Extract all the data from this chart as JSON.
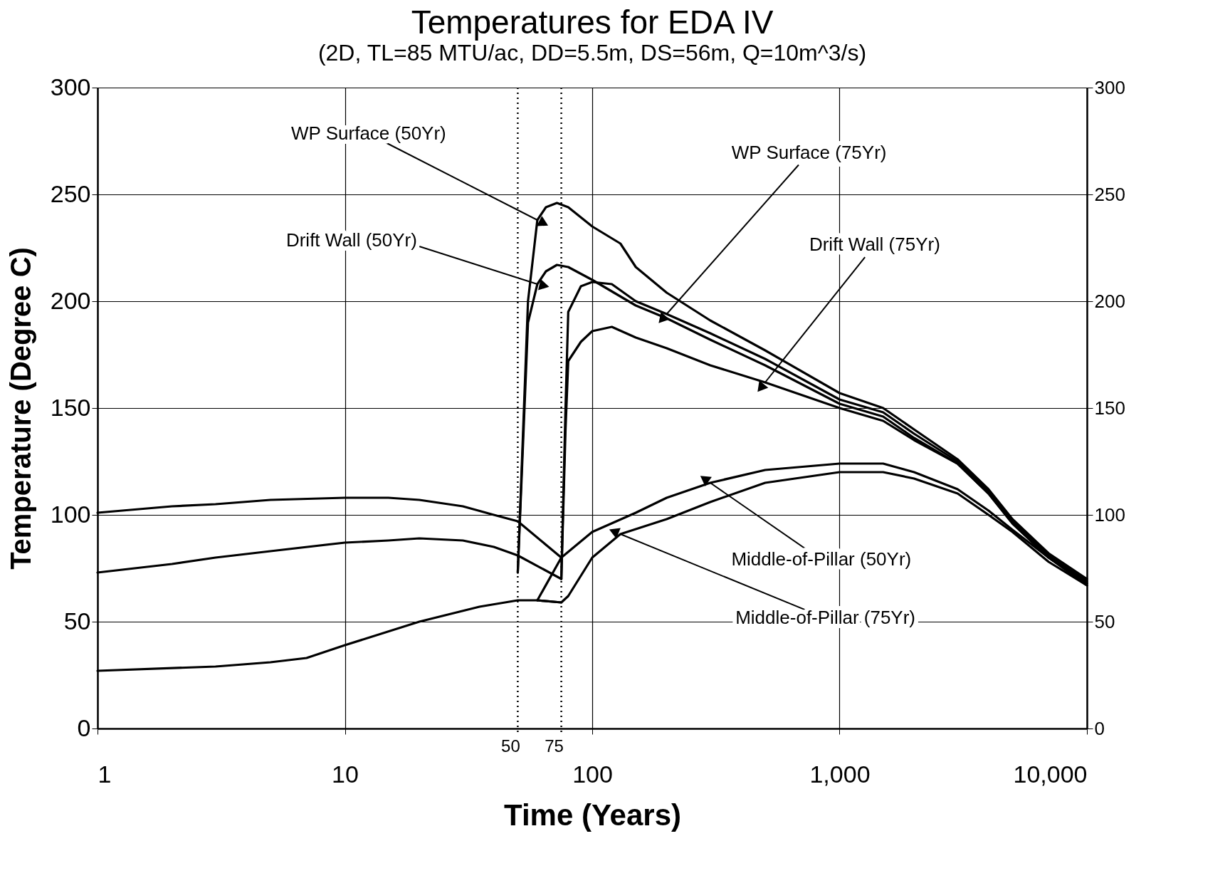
{
  "chart_data": {
    "type": "line",
    "title": "Temperatures for EDA IV",
    "subtitle": "(2D, TL=85 MTU/ac, DD=5.5m, DS=56m, Q=10m^3/s)",
    "xlabel": "Time (Years)",
    "ylabel": "Temperature (Degree C)",
    "log": "x",
    "grid": true,
    "legend": false,
    "marker": "none",
    "line_style": "solid",
    "xlim": [
      1,
      10000
    ],
    "xticks": [
      1,
      10,
      100,
      {
        "value": 1000,
        "label": "1,000"
      },
      {
        "value": 10000,
        "label": "10,000"
      }
    ],
    "ylim": [
      0,
      300
    ],
    "yticks": [
      0,
      50,
      100,
      150,
      200,
      250,
      300
    ],
    "y2lim": [
      0,
      300
    ],
    "y2ticks": [
      0,
      50,
      100,
      150,
      200,
      250,
      300
    ],
    "series": [
      {
        "color": "#000000",
        "x": [
          1,
          2,
          3,
          5,
          10,
          15,
          20,
          30,
          40,
          50,
          75
        ],
        "values": [
          101,
          104,
          105,
          107,
          108,
          108,
          107,
          104,
          100,
          97,
          80
        ]
      },
      {
        "color": "#000000",
        "x": [
          1,
          2,
          3,
          5,
          10,
          15,
          20,
          30,
          40,
          50,
          75
        ],
        "values": [
          73,
          77,
          80,
          83,
          87,
          88,
          89,
          88,
          85,
          81,
          70
        ]
      },
      {
        "color": "#000000",
        "x": [
          1,
          3,
          5,
          7,
          10,
          20,
          35,
          50,
          60,
          75
        ],
        "values": [
          27,
          29,
          31,
          33,
          39,
          50,
          57,
          60,
          60,
          59
        ]
      },
      {
        "color": "#000000",
        "x": [
          50,
          55,
          60,
          65,
          72,
          80,
          100,
          130,
          150,
          200,
          300,
          500,
          1000,
          1500,
          2000,
          3000,
          4000,
          5000,
          7000,
          10000
        ],
        "values": [
          73,
          200,
          238,
          244,
          246,
          244,
          235,
          227,
          216,
          204,
          191,
          177,
          157,
          150,
          140,
          126,
          112,
          98,
          82,
          70
        ]
      },
      {
        "color": "#000000",
        "x": [
          50,
          55,
          60,
          65,
          72,
          80,
          100,
          150,
          200,
          300,
          500,
          1000,
          1500,
          2000,
          3000,
          4000,
          5000,
          7000,
          10000
        ],
        "values": [
          73,
          190,
          208,
          214,
          217,
          216,
          210,
          198,
          192,
          182,
          170,
          152,
          146,
          136,
          124,
          110,
          96,
          80,
          68
        ]
      },
      {
        "color": "#000000",
        "x": [
          75,
          78,
          80,
          90,
          100,
          120,
          150,
          200,
          300,
          500,
          1000,
          1500,
          2000,
          3000,
          4000,
          5000,
          7000,
          10000
        ],
        "values": [
          70,
          150,
          195,
          207,
          209,
          208,
          200,
          194,
          185,
          173,
          154,
          148,
          138,
          125,
          111,
          97,
          81,
          69
        ]
      },
      {
        "color": "#000000",
        "x": [
          75,
          78,
          80,
          90,
          100,
          120,
          150,
          200,
          300,
          500,
          1000,
          1500,
          2000,
          3000,
          4000,
          5000,
          7000,
          10000
        ],
        "values": [
          70,
          140,
          172,
          181,
          186,
          188,
          183,
          178,
          170,
          162,
          150,
          144,
          135,
          124,
          110,
          96,
          80,
          67
        ]
      },
      {
        "color": "#000000",
        "x": [
          60,
          75,
          100,
          150,
          200,
          300,
          500,
          1000,
          1500,
          2000,
          3000,
          4000,
          5000,
          7000,
          10000
        ],
        "values": [
          60,
          80,
          92,
          101,
          108,
          115,
          121,
          124,
          124,
          120,
          112,
          102,
          93,
          80,
          68
        ]
      },
      {
        "color": "#000000",
        "x": [
          60,
          75,
          80,
          100,
          130,
          200,
          300,
          500,
          1000,
          1500,
          2000,
          3000,
          4000,
          5000,
          7000,
          10000
        ],
        "values": [
          60,
          59,
          62,
          80,
          91,
          98,
          106,
          115,
          120,
          120,
          117,
          110,
          100,
          92,
          78,
          67
        ]
      }
    ],
    "ref_lines": [
      {
        "axis": "x",
        "value": 50,
        "label": "50",
        "line_style": "dotted",
        "color": "#000000"
      },
      {
        "axis": "x",
        "value": 75,
        "label": "75",
        "line_style": "dotted",
        "color": "#000000"
      }
    ],
    "annotations": [
      {
        "text": "WP Surface (50Yr)",
        "x": 60,
        "y": 238
      },
      {
        "text": "Drift Wall (50Yr)",
        "x": 60,
        "y": 208
      },
      {
        "text": "WP Surface (75Yr)",
        "x": 200,
        "y": 194
      },
      {
        "text": "Drift Wall (75Yr)",
        "x": 500,
        "y": 162
      },
      {
        "text": "Middle-of-Pillar (50Yr)",
        "x": 300,
        "y": 115
      },
      {
        "text": "Middle-of-Pillar (75Yr)",
        "x": 130,
        "y": 91
      }
    ]
  }
}
